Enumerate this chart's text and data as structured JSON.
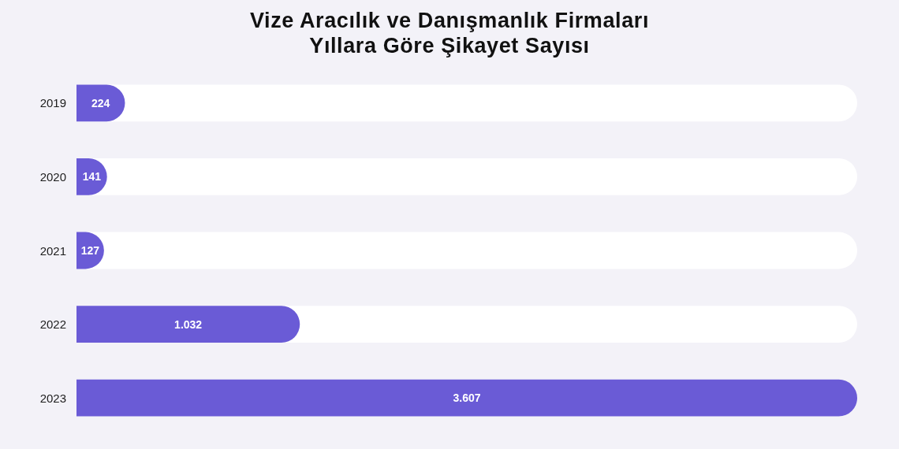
{
  "chart_data": {
    "type": "bar",
    "orientation": "horizontal",
    "title": "Vize Aracılık ve Danışmanlık Firmaları\nYıllara Göre Şikayet Sayısı",
    "categories": [
      "2019",
      "2020",
      "2021",
      "2022",
      "2023"
    ],
    "values": [
      224,
      141,
      127,
      1032,
      3607
    ],
    "value_labels": [
      "224",
      "141",
      "127",
      "1.032",
      "3.607"
    ],
    "color": "#6a5bd6"
  }
}
